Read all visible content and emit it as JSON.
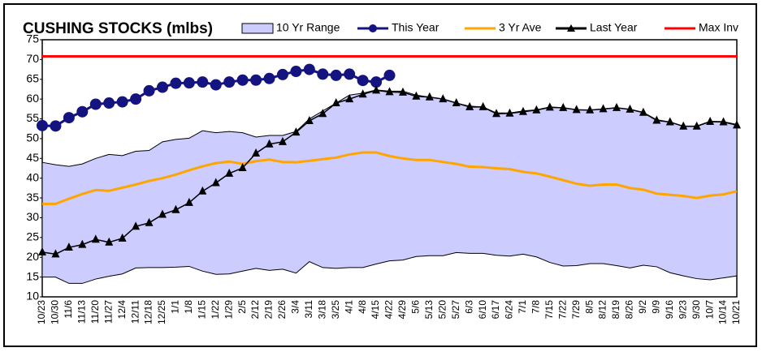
{
  "chart_data": {
    "type": "line",
    "title": "CUSHING STOCKS (mlbs)",
    "categories": [
      "10/23",
      "10/30",
      "11/6",
      "11/13",
      "11/20",
      "11/27",
      "12/4",
      "12/11",
      "12/18",
      "12/25",
      "1/1",
      "1/8",
      "1/15",
      "1/22",
      "1/29",
      "2/5",
      "2/12",
      "2/19",
      "2/26",
      "3/4",
      "3/11",
      "3/18",
      "3/25",
      "4/1",
      "4/8",
      "4/15",
      "4/22",
      "4/29",
      "5/6",
      "5/13",
      "5/20",
      "5/27",
      "6/3",
      "6/10",
      "6/17",
      "6/24",
      "7/1",
      "7/8",
      "7/15",
      "7/22",
      "7/29",
      "8/5",
      "8/12",
      "8/19",
      "8/26",
      "9/2",
      "9/9",
      "9/16",
      "9/23",
      "9/30",
      "10/7",
      "10/14",
      "10/21"
    ],
    "series": [
      {
        "name": "10 Yr Range",
        "color": "#ccccff",
        "type": "range",
        "low": [
          15,
          15,
          13.4,
          13.4,
          14.5,
          15.2,
          15.8,
          17.3,
          17.4,
          17.4,
          17.5,
          17.7,
          16.5,
          15.7,
          15.8,
          16.5,
          17.2,
          16.7,
          17,
          16,
          18.9,
          17.4,
          17.2,
          17.4,
          17.4,
          18.3,
          19.1,
          19.3,
          20.2,
          20.4,
          20.4,
          21.2,
          21,
          21,
          20.5,
          20.3,
          20.8,
          20.1,
          18.7,
          17.8,
          17.9,
          18.4,
          18.4,
          17.9,
          17.3,
          18,
          17.6,
          16.1,
          15.3,
          14.6,
          14.3,
          14.8,
          15.3
        ],
        "high": [
          44,
          43.4,
          43,
          43.6,
          45,
          46,
          45.7,
          46.8,
          47,
          49.2,
          49.8,
          50.1,
          52,
          51.5,
          51.8,
          51.5,
          50.4,
          50.8,
          50.8,
          51.8,
          55,
          57,
          59,
          61,
          61.5,
          62.3,
          62,
          62,
          61,
          60.5,
          60,
          59,
          58.2,
          58,
          56.5,
          56.5,
          57,
          57.3,
          58,
          57.8,
          57.3,
          57.2,
          57.5,
          57.8,
          57.4,
          56.6,
          54.8,
          54.2,
          53.2,
          53.2,
          54.4,
          54.3,
          53.6
        ]
      },
      {
        "name": "This Year",
        "color": "#141480",
        "marker": "circle",
        "values": [
          53.3,
          53.2,
          55.3,
          56.8,
          58.7,
          59,
          59.3,
          60,
          62.1,
          63,
          64,
          64.1,
          64.3,
          63.6,
          64.3,
          64.8,
          64.8,
          65.2,
          66.2,
          67,
          67.5,
          66.3,
          66,
          66.3,
          64.7,
          64.3,
          66,
          null,
          null,
          null,
          null,
          null,
          null,
          null,
          null,
          null,
          null,
          null,
          null,
          null,
          null,
          null,
          null,
          null,
          null,
          null,
          null,
          null,
          null,
          null,
          null,
          null,
          null
        ]
      },
      {
        "name": "3 Yr Ave",
        "color": "#ffa500",
        "marker": "none",
        "values": [
          33.5,
          33.5,
          34.8,
          36,
          37,
          36.8,
          37.6,
          38.4,
          39.3,
          40,
          40.9,
          42,
          43,
          43.8,
          44.2,
          43.6,
          44.3,
          44.7,
          44.1,
          44,
          44.4,
          44.8,
          45.2,
          46,
          46.5,
          46.5,
          45.6,
          45,
          44.6,
          44.6,
          44.1,
          43.6,
          42.9,
          42.8,
          42.5,
          42.3,
          41.6,
          41.2,
          40.4,
          39.5,
          38.6,
          38.1,
          38.4,
          38.4,
          37.5,
          37.1,
          36.1,
          35.8,
          35.5,
          35,
          35.6,
          35.9,
          36.7
        ]
      },
      {
        "name": "Last Year",
        "color": "#000000",
        "marker": "triangle",
        "values": [
          21.3,
          20.8,
          22.5,
          23.2,
          24.5,
          23.8,
          24.8,
          27.8,
          28.7,
          30.8,
          32,
          33.8,
          36.7,
          38.8,
          41.2,
          42.6,
          46.3,
          48.6,
          49.2,
          51.6,
          54.5,
          56.3,
          59,
          60,
          61.2,
          62.2,
          61.8,
          61.7,
          60.7,
          60.5,
          60,
          59,
          58,
          58,
          56.3,
          56.4,
          56.8,
          57.2,
          57.9,
          57.8,
          57.3,
          57.2,
          57.5,
          57.8,
          57.4,
          56.6,
          54.6,
          54.2,
          53.1,
          53.1,
          54.3,
          54.2,
          53.4
        ]
      },
      {
        "name": "Max Inv",
        "color": "#ff0000",
        "marker": "none",
        "values": [
          70.8,
          70.8,
          70.8,
          70.8,
          70.8,
          70.8,
          70.8,
          70.8,
          70.8,
          70.8,
          70.8,
          70.8,
          70.8,
          70.8,
          70.8,
          70.8,
          70.8,
          70.8,
          70.8,
          70.8,
          70.8,
          70.8,
          70.8,
          70.8,
          70.8,
          70.8,
          70.8,
          70.8,
          70.8,
          70.8,
          70.8,
          70.8,
          70.8,
          70.8,
          70.8,
          70.8,
          70.8,
          70.8,
          70.8,
          70.8,
          70.8,
          70.8,
          70.8,
          70.8,
          70.8,
          70.8,
          70.8,
          70.8,
          70.8,
          70.8,
          70.8,
          70.8,
          70.8
        ]
      }
    ],
    "ylim": [
      10,
      75
    ],
    "yticks": [
      10,
      15,
      20,
      25,
      30,
      35,
      40,
      45,
      50,
      55,
      60,
      65,
      70,
      75
    ],
    "grid": false,
    "legend": "top"
  }
}
